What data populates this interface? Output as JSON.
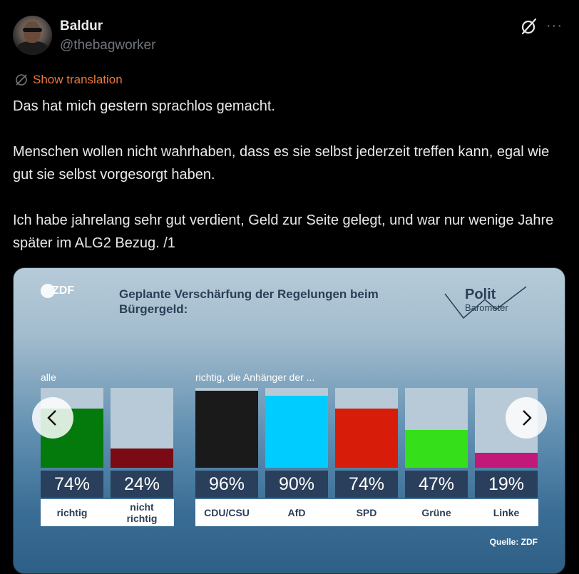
{
  "author": {
    "name": "Baldur",
    "handle": "@thebagworker"
  },
  "translation_link": "Show translation",
  "tweet": {
    "paragraphs": [
      "Das hat mich gestern sprachlos gemacht.",
      "Menschen wollen nicht wahrhaben, dass es sie selbst jederzeit treffen kann, egal wie gut sie selbst vorgesorgt haben.",
      "Ich habe jahrelang sehr gut verdient, Geld zur Seite gelegt, und war nur wenige Jahre später im ALG2 Bezug. /1"
    ]
  },
  "icons": {
    "grok": "grok-icon",
    "more": "more-icon",
    "translate": "translate-icon",
    "prev": "chevron-left-icon",
    "next": "chevron-right-icon"
  },
  "media": {
    "logo": "ZDF",
    "polit_line1": "Polit",
    "polit_line2": "Barometer",
    "title": "Geplante Verschärfung der Regelungen beim Bürgergeld:",
    "label_all": "alle",
    "label_supporters": "richtig, die Anhänger der ...",
    "source": "Quelle: ZDF"
  },
  "chart_data": {
    "type": "bar",
    "title": "Geplante Verschärfung der Regelungen beim Bürgergeld:",
    "categories": [
      "richtig",
      "nicht richtig",
      "CDU/CSU",
      "AfD",
      "SPD",
      "Grüne",
      "Linke"
    ],
    "values": [
      74,
      24,
      96,
      90,
      74,
      47,
      19
    ],
    "value_labels": [
      "74%",
      "24%",
      "96%",
      "90%",
      "74%",
      "47%",
      "19%"
    ],
    "colors": [
      "#047a0c",
      "#7a0a14",
      "#1a1a1a",
      "#00ccff",
      "#d81c0a",
      "#35e01a",
      "#c2187a"
    ],
    "ylim": [
      0,
      100
    ]
  }
}
